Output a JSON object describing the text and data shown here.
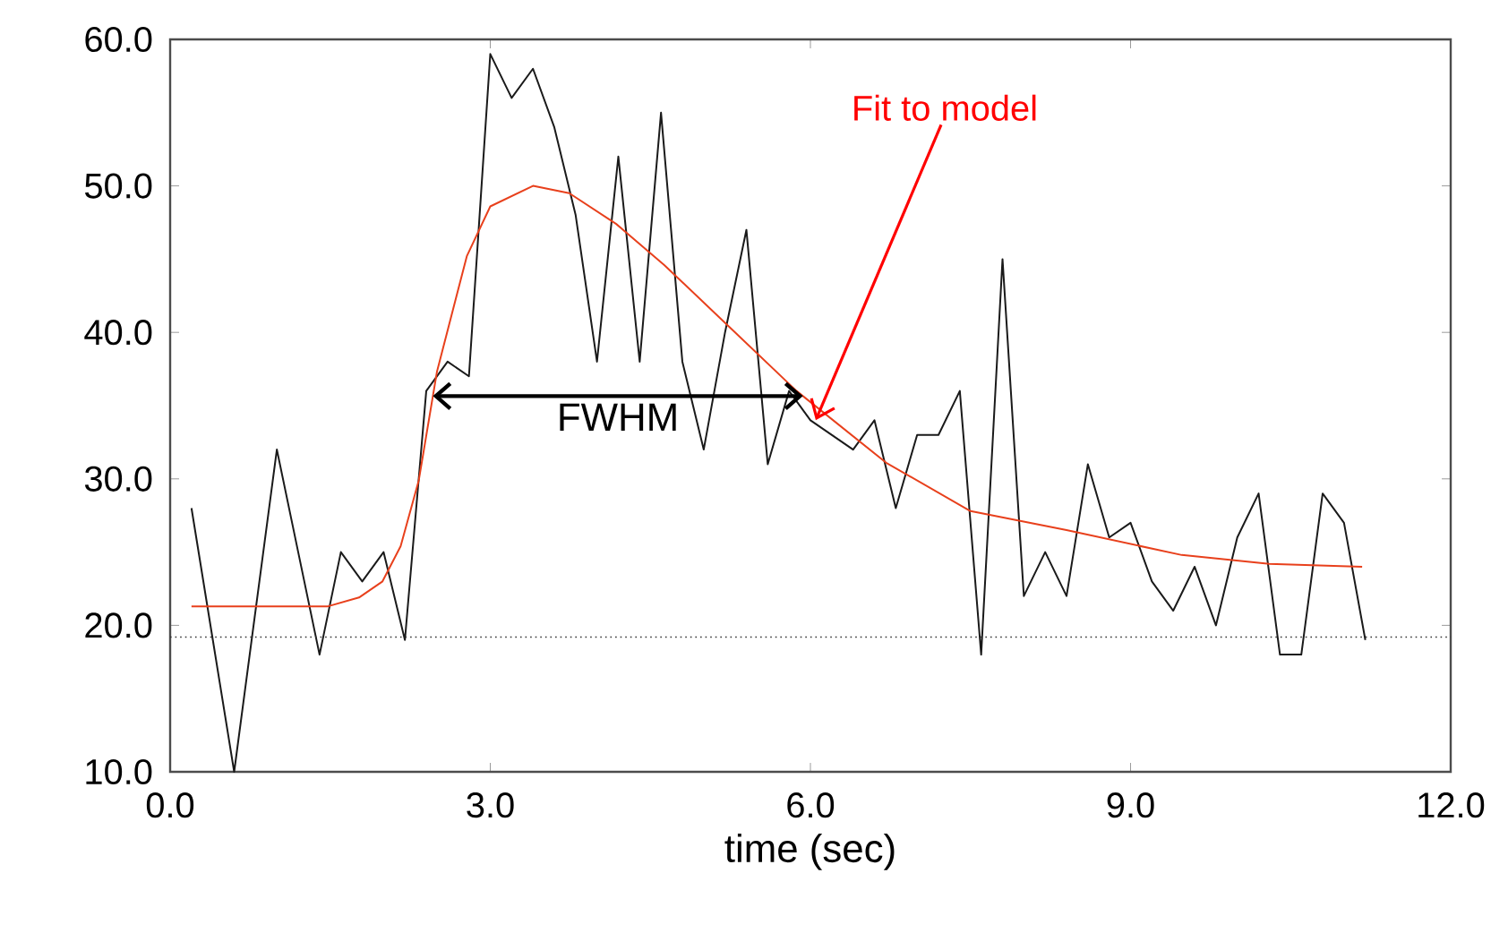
{
  "chart_data": {
    "type": "line",
    "xlabel": "time (sec)",
    "x": [
      0.2,
      0.4,
      0.6,
      0.8,
      1.0,
      1.2,
      1.4,
      1.6,
      1.8,
      2.0,
      2.2,
      2.4,
      2.6,
      2.8,
      3.0,
      3.2,
      3.4,
      3.6,
      3.8,
      4.0,
      4.2,
      4.4,
      4.6,
      4.8,
      5.0,
      5.2,
      5.4,
      5.6,
      5.8,
      6.0,
      6.2,
      6.4,
      6.6,
      6.8,
      7.0,
      7.2,
      7.4,
      7.6,
      7.8,
      8.0,
      8.2,
      8.4,
      8.6,
      8.8,
      9.0,
      9.2,
      9.4,
      9.6,
      9.8,
      10.0,
      10.2,
      10.4,
      10.6,
      10.8,
      11.0,
      11.2
    ],
    "series": [
      {
        "color": "#1a1a1a",
        "values": [
          28,
          19,
          10,
          21,
          32,
          25,
          18,
          25,
          23,
          25,
          19,
          36,
          38,
          37,
          59,
          56,
          58,
          54,
          48,
          38,
          52,
          38,
          55,
          38,
          32,
          40,
          47,
          31,
          36,
          34,
          33,
          32,
          34,
          28,
          33,
          33,
          36,
          18,
          45,
          22,
          25,
          22,
          31,
          26,
          27,
          23,
          21,
          24,
          20,
          26,
          29,
          18,
          18,
          29,
          27,
          19
        ]
      },
      {
        "color": "#e8401c",
        "x": [
          0.2,
          1.48,
          1.77,
          1.99,
          2.16,
          2.33,
          2.5,
          2.78,
          3.0,
          3.4,
          3.74,
          4.18,
          4.63,
          5.25,
          5.87,
          6.71,
          7.5,
          8.4,
          9.48,
          10.3,
          11.17
        ],
        "values": [
          21.3,
          21.3,
          21.9,
          23,
          25.4,
          29.9,
          37.3,
          45.2,
          48.6,
          50.0,
          49.5,
          47.4,
          44.6,
          40.3,
          36,
          31.1,
          27.8,
          26.5,
          24.8,
          24.2,
          24.0
        ]
      }
    ],
    "xlim": [
      0,
      12
    ],
    "xticks": [
      {
        "value": 0,
        "label": "0.0"
      },
      {
        "value": 3,
        "label": "3.0"
      },
      {
        "value": 6,
        "label": "6.0"
      },
      {
        "value": 9,
        "label": "9.0"
      },
      {
        "value": 12,
        "label": "12.0"
      }
    ],
    "ylim": [
      10,
      60
    ],
    "yticks": [
      {
        "value": 10,
        "label": "10.0"
      },
      {
        "value": 20,
        "label": "20.0"
      },
      {
        "value": 30,
        "label": "30.0"
      },
      {
        "value": 40,
        "label": "40.0"
      },
      {
        "value": 50,
        "label": "50.0"
      },
      {
        "value": 60,
        "label": "60.0"
      }
    ],
    "ref_lines": [
      {
        "axis": "y",
        "value": 19.2,
        "color": "#333333",
        "line_style": "dotted"
      }
    ],
    "annotations": [
      "FWHM",
      {
        "text": "Fit to model",
        "x": 6.05,
        "y": 34
      }
    ],
    "grid": false,
    "marker": "none",
    "line_style": "solid"
  }
}
